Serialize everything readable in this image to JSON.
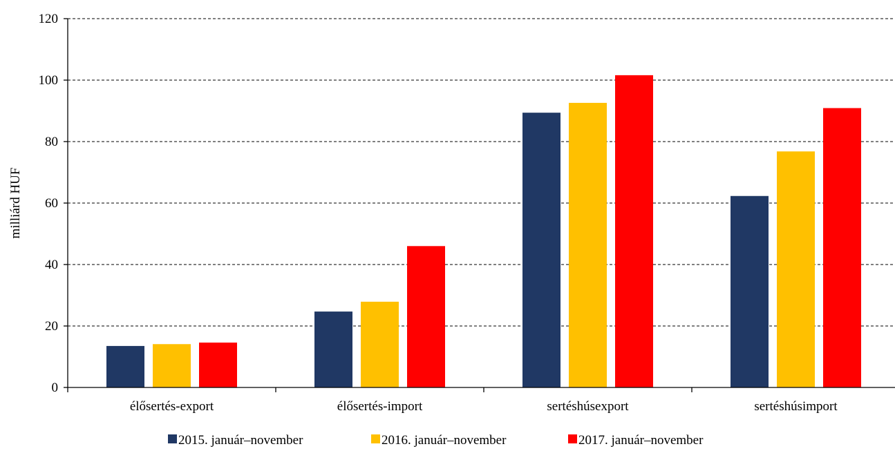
{
  "chart_data": {
    "type": "bar",
    "title": "",
    "ylabel": "milliárd HUF",
    "xlabel": "",
    "ylim": [
      0,
      120
    ],
    "yticks": [
      0,
      20,
      40,
      60,
      80,
      100,
      120
    ],
    "grid": true,
    "legend_position": "bottom",
    "categories": [
      "élősertés-export",
      "élősertés-import",
      "sertéshúsexport",
      "sertéshúsimport"
    ],
    "series": [
      {
        "name": "2015. január–november",
        "color": "#203864",
        "values": [
          13.5,
          24.7,
          89.4,
          62.3
        ]
      },
      {
        "name": "2016. január–november",
        "color": "#FFC000",
        "values": [
          14.1,
          27.9,
          92.6,
          76.8
        ]
      },
      {
        "name": "2017. január–november",
        "color": "#FF0000",
        "values": [
          14.6,
          46.0,
          101.6,
          90.9
        ]
      }
    ]
  }
}
